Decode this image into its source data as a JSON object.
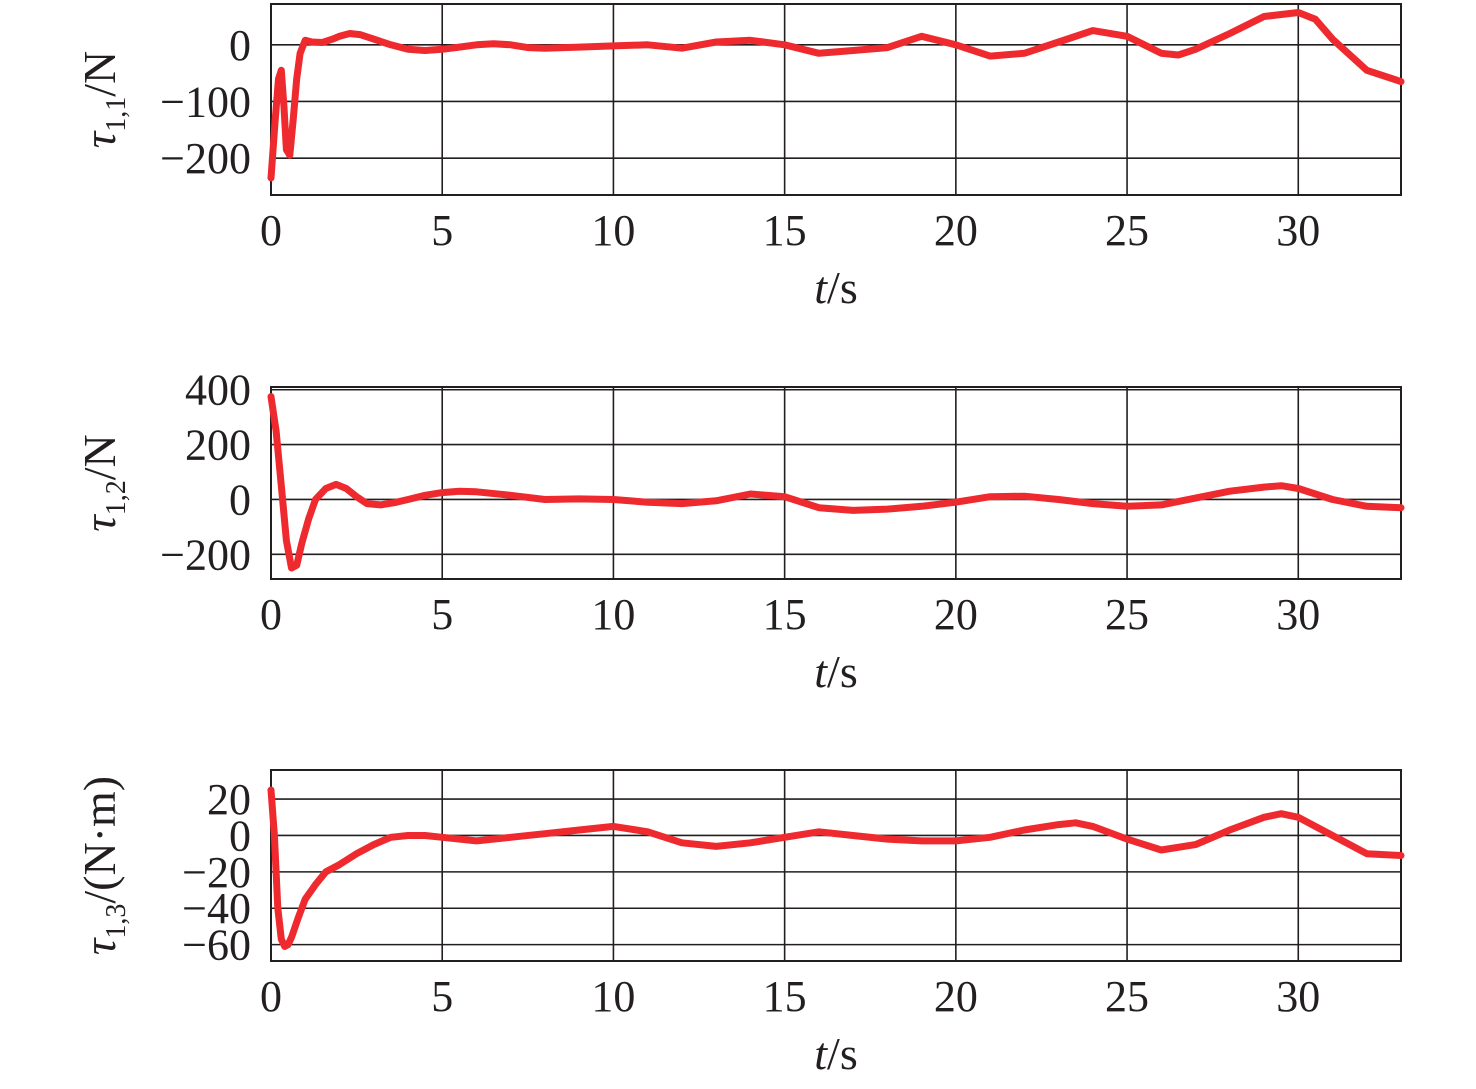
{
  "line_color": "#ee2a2f",
  "chart_data": [
    {
      "type": "line",
      "xlabel": {
        "var": "t",
        "rest": "/s"
      },
      "ylabel": {
        "var": "τ",
        "sub": "1,1",
        "rest": "/N"
      },
      "xlim": [
        0,
        33
      ],
      "ylim": [
        -265,
        72
      ],
      "xticks": [
        0,
        5,
        10,
        15,
        20,
        25,
        30
      ],
      "yticks": [
        -200,
        -100,
        0
      ],
      "ytick_labels": [
        "−200",
        "−100",
        "0"
      ],
      "grid": true,
      "series": [
        {
          "x": [
            0.0,
            0.12,
            0.22,
            0.3,
            0.38,
            0.45,
            0.55,
            0.65,
            0.75,
            0.85,
            1.0,
            1.2,
            1.5,
            1.8,
            2.0,
            2.3,
            2.6,
            3.0,
            3.5,
            4.0,
            4.5,
            5.0,
            5.5,
            6.0,
            6.5,
            7.0,
            7.5,
            8.0,
            9.0,
            10.0,
            11.0,
            12.0,
            13.0,
            14.0,
            15.0,
            16.0,
            17.0,
            18.0,
            19.0,
            20.0,
            21.0,
            22.0,
            23.0,
            24.0,
            25.0,
            26.0,
            26.5,
            27.0,
            28.0,
            29.0,
            30.0,
            30.5,
            31.0,
            32.0,
            33.0
          ],
          "y": [
            -235,
            -135,
            -60,
            -45,
            -110,
            -185,
            -195,
            -130,
            -60,
            -15,
            8,
            5,
            4,
            10,
            15,
            20,
            18,
            10,
            0,
            -8,
            -10,
            -8,
            -4,
            0,
            2,
            0,
            -5,
            -6,
            -4,
            -2,
            0,
            -6,
            5,
            8,
            0,
            -15,
            -10,
            -5,
            15,
            0,
            -20,
            -15,
            5,
            25,
            15,
            -15,
            -18,
            -8,
            20,
            50,
            57,
            45,
            10,
            -45,
            -65
          ]
        }
      ]
    },
    {
      "type": "line",
      "xlabel": {
        "var": "t",
        "rest": "/s"
      },
      "ylabel": {
        "var": "τ",
        "sub": "1,2",
        "rest": "/N"
      },
      "xlim": [
        0,
        33
      ],
      "ylim": [
        -290,
        410
      ],
      "xticks": [
        0,
        5,
        10,
        15,
        20,
        25,
        30
      ],
      "yticks": [
        -200,
        0,
        200,
        400
      ],
      "ytick_labels": [
        "−200",
        "0",
        "200",
        "400"
      ],
      "grid": true,
      "series": [
        {
          "x": [
            0.0,
            0.15,
            0.3,
            0.45,
            0.6,
            0.75,
            0.9,
            1.1,
            1.3,
            1.6,
            1.9,
            2.2,
            2.5,
            2.8,
            3.2,
            3.6,
            4.0,
            4.5,
            5.0,
            5.5,
            6.0,
            7.0,
            8.0,
            9.0,
            10.0,
            11.0,
            12.0,
            13.0,
            14.0,
            15.0,
            16.0,
            17.0,
            18.0,
            19.0,
            20.0,
            21.0,
            22.0,
            23.0,
            24.0,
            25.0,
            26.0,
            27.0,
            28.0,
            29.0,
            29.5,
            30.0,
            31.0,
            32.0,
            33.0
          ],
          "y": [
            375,
            250,
            50,
            -150,
            -250,
            -240,
            -160,
            -70,
            0,
            40,
            55,
            40,
            10,
            -15,
            -20,
            -12,
            0,
            15,
            25,
            30,
            28,
            15,
            0,
            2,
            0,
            -10,
            -15,
            -5,
            20,
            10,
            -30,
            -40,
            -35,
            -25,
            -10,
            10,
            12,
            0,
            -15,
            -25,
            -20,
            5,
            30,
            45,
            50,
            40,
            0,
            -25,
            -30
          ]
        }
      ]
    },
    {
      "type": "line",
      "xlabel": {
        "var": "t",
        "rest": "/s"
      },
      "ylabel": {
        "var": "τ",
        "sub": "1,3",
        "rest": "/(N·m)"
      },
      "xlim": [
        0,
        33
      ],
      "ylim": [
        -69,
        36
      ],
      "xticks": [
        0,
        5,
        10,
        15,
        20,
        25,
        30
      ],
      "yticks": [
        -60,
        -40,
        -20,
        0,
        20
      ],
      "ytick_labels": [
        "−60",
        "−40",
        "−20",
        "0",
        "20"
      ],
      "grid": true,
      "series": [
        {
          "x": [
            0.0,
            0.1,
            0.2,
            0.3,
            0.4,
            0.5,
            0.6,
            0.8,
            1.0,
            1.3,
            1.6,
            2.0,
            2.5,
            3.0,
            3.5,
            4.0,
            4.5,
            5.0,
            6.0,
            7.0,
            8.0,
            9.0,
            10.0,
            11.0,
            12.0,
            13.0,
            14.0,
            15.0,
            16.0,
            17.0,
            18.0,
            19.0,
            20.0,
            21.0,
            22.0,
            23.0,
            23.5,
            24.0,
            25.0,
            26.0,
            27.0,
            28.0,
            29.0,
            29.5,
            30.0,
            31.0,
            32.0,
            33.0
          ],
          "y": [
            25,
            0,
            -40,
            -57,
            -61,
            -60,
            -56,
            -45,
            -35,
            -27,
            -20,
            -16,
            -10,
            -5,
            -1,
            0,
            0,
            -1,
            -3,
            -1,
            1,
            3,
            5,
            2,
            -4,
            -6,
            -4,
            -1,
            2,
            0,
            -2,
            -3,
            -3,
            -1,
            3,
            6,
            7,
            5,
            -2,
            -8,
            -5,
            3,
            10,
            12,
            10,
            0,
            -10,
            -11
          ]
        }
      ]
    }
  ]
}
